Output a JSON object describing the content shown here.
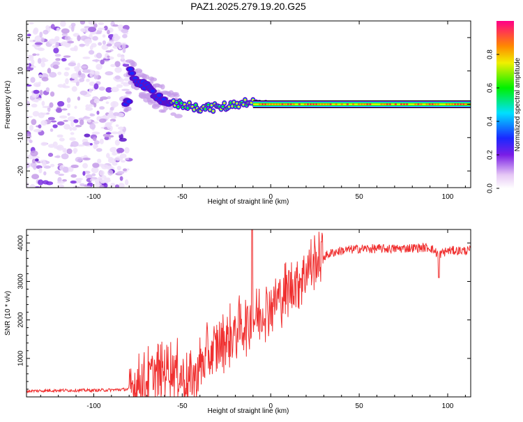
{
  "title": "PAZ1.2025.279.19.20.G25",
  "colors": {
    "snr_line": "#f03030",
    "center_line": "#000000"
  },
  "chart_data": [
    {
      "type": "heatmap",
      "name": "spectrogram",
      "xlabel": "Height of straight line (km)",
      "ylabel": "Frequency (Hz)",
      "xlim": [
        -138,
        113
      ],
      "ylim": [
        -25,
        25
      ],
      "x_ticks": [
        -100,
        -50,
        0,
        50,
        100
      ],
      "x_tick_labels": [
        "-100",
        "-50",
        "0",
        "50",
        "100"
      ],
      "y_ticks": [
        -20,
        -10,
        0,
        10,
        20
      ],
      "y_tick_labels": [
        "-20",
        "-10",
        "0",
        "10",
        "20"
      ],
      "description_points": {
        "noise_region_km": [
          -138,
          -80
        ],
        "signal_track": [
          {
            "x": -80,
            "y": 10
          },
          {
            "x": -75,
            "y": 7
          },
          {
            "x": -70,
            "y": 5
          },
          {
            "x": -65,
            "y": 3
          },
          {
            "x": -60,
            "y": 1
          },
          {
            "x": -55,
            "y": 0
          },
          {
            "x": -50,
            "y": 0
          },
          {
            "x": -40,
            "y": -1
          },
          {
            "x": -30,
            "y": -1
          },
          {
            "x": -20,
            "y": 0
          },
          {
            "x": -12,
            "y": 1
          },
          {
            "x": -8,
            "y": 0
          },
          {
            "x": 0,
            "y": 0
          },
          {
            "x": 50,
            "y": 0
          },
          {
            "x": 113,
            "y": 0
          }
        ]
      },
      "colorbar": {
        "label": "Normalized spectral amplitude",
        "range": [
          0,
          1
        ],
        "ticks": [
          0.0,
          0.2,
          0.4,
          0.6,
          0.8
        ],
        "tick_labels": [
          "0.0",
          "0.2",
          "0.4",
          "0.6",
          "0.8"
        ]
      }
    },
    {
      "type": "line",
      "name": "snr",
      "xlabel": "Height of straight line (km)",
      "ylabel": "SNR (10 * v/v)",
      "xlim": [
        -138,
        113
      ],
      "ylim": [
        0,
        4350
      ],
      "x_ticks": [
        -100,
        -50,
        0,
        50,
        100
      ],
      "x_tick_labels": [
        "-100",
        "-50",
        "0",
        "50",
        "100"
      ],
      "y_ticks": [
        1000,
        2000,
        3000,
        4000
      ],
      "y_tick_labels": [
        "1000",
        "2000",
        "3000",
        "4000"
      ],
      "series": [
        {
          "name": "SNR",
          "x": [
            -138,
            -120,
            -100,
            -90,
            -80,
            -75,
            -70,
            -65,
            -60,
            -55,
            -50,
            -45,
            -40,
            -35,
            -30,
            -25,
            -20,
            -15,
            -10,
            -5,
            0,
            5,
            10,
            15,
            20,
            25,
            30,
            35,
            40,
            50,
            60,
            70,
            80,
            90,
            95,
            100,
            113
          ],
          "y": [
            150,
            170,
            170,
            180,
            200,
            350,
            450,
            600,
            700,
            750,
            500,
            380,
            800,
            1100,
            1300,
            1500,
            1700,
            1900,
            2000,
            2200,
            2400,
            2600,
            2800,
            3000,
            3300,
            3500,
            3650,
            3750,
            3800,
            3850,
            3850,
            3850,
            3870,
            3880,
            3700,
            3800,
            3800
          ]
        }
      ]
    }
  ]
}
